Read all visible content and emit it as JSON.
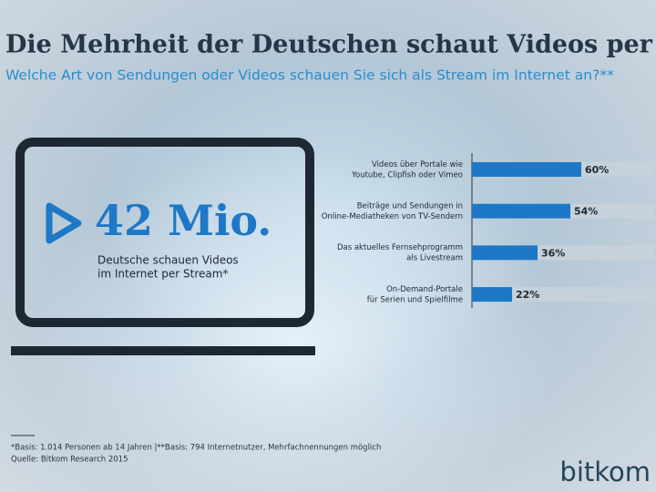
{
  "chart_data": {
    "type": "bar",
    "title": "Die Mehrheit der Deutschen schaut Videos per Stream",
    "subtitle": "Welche Art von Sendungen oder Videos schauen Sie sich als Stream im Internet an?**",
    "categories": [
      [
        "Videos über Portale wie",
        "Youtube, Clipfish oder Vimeo"
      ],
      [
        "Beiträge und Sendungen in",
        "Online-Mediatheken von TV-Sendern"
      ],
      [
        "Das aktuelles Fernsehprogramm",
        "als Livestream"
      ],
      [
        "On-Demand-Portale",
        "für Serien und Spielfilme"
      ]
    ],
    "values": [
      60,
      54,
      36,
      22
    ],
    "value_labels": [
      "60%",
      "54%",
      "36%",
      "22%"
    ],
    "xlim": [
      0,
      100
    ],
    "color": "#1e78c6"
  },
  "highlight": {
    "value": "42 Mio.",
    "text": [
      "Deutsche schauen Videos",
      "im Internet per Stream*"
    ]
  },
  "footnote": [
    "*Basis: 1.014 Personen ab 14 Jahren |**Basis: 794 Internetnutzer, Mehrfachnennungen möglich",
    "Quelle: Bitkom Research 2015"
  ],
  "logo": "bitkom"
}
